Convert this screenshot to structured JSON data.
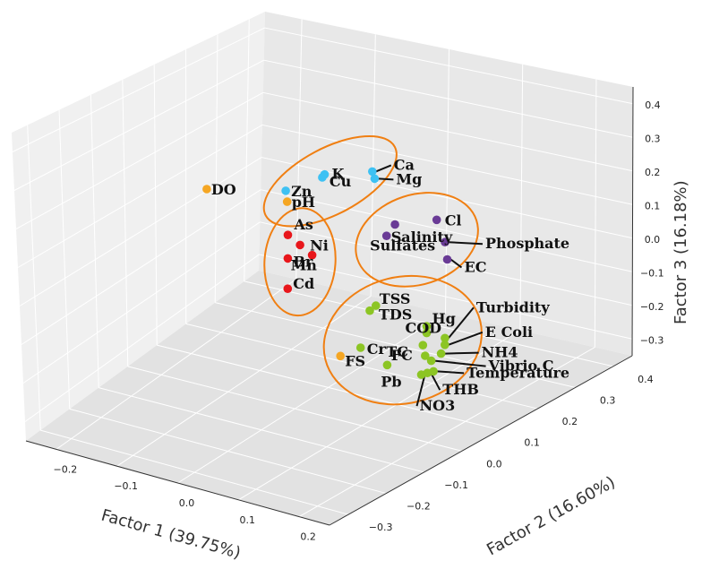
{
  "chart_data": {
    "type": "scatter",
    "projection": "3d",
    "title": "",
    "xlabel": "Factor 1 (39.75%)",
    "ylabel": "Factor 2 (16.60%)",
    "zlabel": "Factor 3 (16.18%)",
    "x_ticks": [
      "−0.2",
      "−0.1",
      "0.0",
      "0.1",
      "0.2"
    ],
    "y_ticks": [
      "−0.3",
      "−0.2",
      "−0.1",
      "0.0",
      "0.1",
      "0.2",
      "0.3",
      "0.4"
    ],
    "z_ticks": [
      "−0.3",
      "−0.2",
      "−0.1",
      "0.0",
      "0.1",
      "0.2",
      "0.3",
      "0.4"
    ],
    "xlim": [
      -0.25,
      0.25
    ],
    "ylim": [
      -0.35,
      0.45
    ],
    "zlim": [
      -0.35,
      0.45
    ],
    "grid": true,
    "colors": {
      "red": "#e8161b",
      "blue": "#3ec1f3",
      "purple": "#6a3b96",
      "green": "#8cc524",
      "orange": "#f5a623",
      "ellipse": "#f07f12"
    },
    "points": [
      {
        "label": "Ca",
        "group": "blue",
        "x": 0.07,
        "y": 0.05,
        "z": 0.36
      },
      {
        "label": "Mg",
        "group": "blue",
        "x": 0.08,
        "y": 0.04,
        "z": 0.35
      },
      {
        "label": "K",
        "group": "blue",
        "x": 0.01,
        "y": 0.02,
        "z": 0.34
      },
      {
        "label": "Cu",
        "group": "blue",
        "x": 0.0,
        "y": 0.03,
        "z": 0.32
      },
      {
        "label": "Zn",
        "group": "blue",
        "x": -0.06,
        "y": 0.03,
        "z": 0.25
      },
      {
        "label": "Cl",
        "group": "purple",
        "x": 0.17,
        "y": 0.06,
        "z": 0.26
      },
      {
        "label": "Sulfates",
        "group": "purple",
        "x": 0.12,
        "y": 0.03,
        "z": 0.24
      },
      {
        "label": "Phosphate",
        "group": "purple",
        "x": 0.19,
        "y": 0.05,
        "z": 0.21
      },
      {
        "label": "Salinity",
        "group": "purple",
        "x": 0.1,
        "y": 0.04,
        "z": 0.19
      },
      {
        "label": "EC",
        "group": "purple",
        "x": 0.2,
        "y": 0.04,
        "z": 0.17
      },
      {
        "label": "pH",
        "group": "orange",
        "x": -0.07,
        "y": 0.05,
        "z": 0.2
      },
      {
        "label": "DO",
        "group": "orange",
        "x": -0.19,
        "y": 0.03,
        "z": 0.19
      },
      {
        "label": "FS",
        "group": "orange",
        "x": 0.18,
        "y": -0.21,
        "z": 0.03
      },
      {
        "label": "As",
        "group": "red",
        "x": -0.05,
        "y": 0.02,
        "z": 0.13
      },
      {
        "label": "Ni",
        "group": "red",
        "x": -0.03,
        "y": 0.02,
        "z": 0.11
      },
      {
        "label": "Mn",
        "group": "red",
        "x": -0.01,
        "y": 0.02,
        "z": 0.09
      },
      {
        "label": "Br",
        "group": "red",
        "x": -0.05,
        "y": 0.02,
        "z": 0.06
      },
      {
        "label": "Cd",
        "group": "red",
        "x": -0.05,
        "y": 0.02,
        "z": -0.03
      },
      {
        "label": "Hg",
        "group": "green",
        "x": 0.21,
        "y": -0.03,
        "z": 0.02
      },
      {
        "label": "TSS",
        "group": "green",
        "x": 0.12,
        "y": -0.02,
        "z": 0.03
      },
      {
        "label": "COD",
        "group": "green",
        "x": 0.21,
        "y": -0.03,
        "z": 0.0
      },
      {
        "label": "Turbidity",
        "group": "green",
        "x": 0.24,
        "y": -0.03,
        "z": 0.0
      },
      {
        "label": "TDS",
        "group": "green",
        "x": 0.11,
        "y": -0.02,
        "z": 0.01
      },
      {
        "label": "E Coli",
        "group": "green",
        "x": 0.24,
        "y": -0.03,
        "z": -0.02
      },
      {
        "label": "TC",
        "group": "green",
        "x": 0.21,
        "y": -0.04,
        "z": -0.03
      },
      {
        "label": "NH4",
        "group": "green",
        "x": 0.24,
        "y": -0.04,
        "z": -0.04
      },
      {
        "label": "FC",
        "group": "green",
        "x": 0.22,
        "y": -0.05,
        "z": -0.05
      },
      {
        "label": "Vibrio C",
        "group": "green",
        "x": 0.23,
        "y": -0.05,
        "z": -0.06
      },
      {
        "label": "Temperature",
        "group": "green",
        "x": 0.24,
        "y": -0.06,
        "z": -0.08
      },
      {
        "label": "Cr",
        "group": "green",
        "x": 0.12,
        "y": -0.06,
        "z": -0.07
      },
      {
        "label": "Pb",
        "group": "green",
        "x": 0.17,
        "y": -0.07,
        "z": -0.09
      },
      {
        "label": "THB",
        "group": "green",
        "x": 0.23,
        "y": -0.06,
        "z": -0.09
      },
      {
        "label": "NO3",
        "group": "green",
        "x": 0.22,
        "y": -0.06,
        "z": -0.1
      }
    ],
    "clusters": [
      "blue",
      "purple",
      "red",
      "green"
    ]
  }
}
